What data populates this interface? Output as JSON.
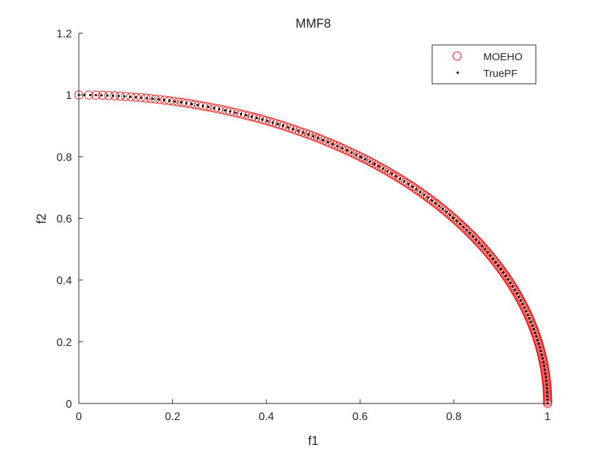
{
  "chart_data": {
    "type": "scatter",
    "title": "MMF8",
    "xlabel": "f1",
    "ylabel": "f2",
    "xlim": [
      0,
      1
    ],
    "ylim": [
      0,
      1.2
    ],
    "xticks": [
      "0",
      "0.2",
      "0.4",
      "0.6",
      "0.8",
      "1"
    ],
    "xtick_values": [
      0,
      0.2,
      0.4,
      0.6,
      0.8,
      1
    ],
    "yticks": [
      "0",
      "0.2",
      "0.4",
      "0.6",
      "0.8",
      "1",
      "1.2"
    ],
    "ytick_values": [
      0,
      0.2,
      0.4,
      0.6,
      0.8,
      1,
      1.2
    ],
    "grid": false,
    "legend_position": "top-right",
    "series": [
      {
        "name": "MOEHO",
        "marker": "circle-open",
        "color": "#ff0000",
        "curve": "f1^2 + f2^2 = 1, f1 in [0,1]",
        "n_points": 220,
        "density": "denser toward f2=0"
      },
      {
        "name": "TruePF",
        "marker": "dot",
        "color": "#000000",
        "curve": "f1^2 + f2^2 = 1, f1 in [0,1]",
        "n_points": 130,
        "density": "uniform along arc"
      }
    ]
  }
}
